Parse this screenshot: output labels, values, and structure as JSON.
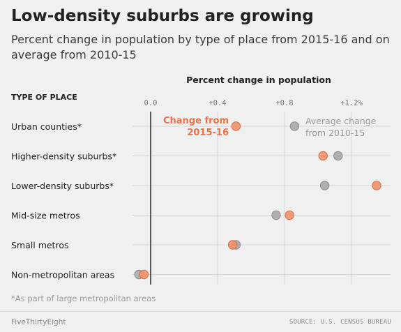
{
  "header": {
    "title": "Low-density suburbs are growing",
    "subtitle": "Percent change in population by type of place from 2015-16 and on average from 2010-15"
  },
  "chart_data": {
    "type": "scatter",
    "axis_title": "Percent change in population",
    "row_header": "TYPE OF PLACE",
    "categories": [
      "Urban counties*",
      "Higher-density suburbs*",
      "Lower-density suburbs*",
      "Mid-size metros",
      "Small metros",
      "Non-metropolitan areas"
    ],
    "xticks": [
      0.0,
      0.4,
      0.8,
      1.2
    ],
    "xtick_labels": [
      "0.0",
      "+0.4",
      "+0.8",
      "+1.2%"
    ],
    "xlim": [
      -0.1,
      1.4
    ],
    "series": [
      {
        "name": "Average change from 2010-15",
        "color": "#a8a8a8",
        "values": [
          0.86,
          1.12,
          1.04,
          0.75,
          0.51,
          -0.07
        ]
      },
      {
        "name": "Change from 2015-16",
        "color": "#f0906a",
        "values": [
          0.51,
          1.03,
          1.35,
          0.83,
          0.49,
          -0.04
        ]
      }
    ],
    "legend": {
      "orange_line1": "Change from",
      "orange_line2": "2015-16",
      "gray_line1": "Average change",
      "gray_line2": "from 2010-15"
    },
    "grid": true
  },
  "footnote": "*As part of large metropolitan areas",
  "footer": {
    "brand": "FiveThirtyEight",
    "source": "SOURCE: U.S. CENSUS BUREAU"
  },
  "colors": {
    "background": "#f0f0f0",
    "orange": "#f0906a",
    "orange_text": "#e8734a",
    "gray": "#a8a8a8",
    "grid": "#d6d6d6",
    "zero_line": "#333333"
  }
}
